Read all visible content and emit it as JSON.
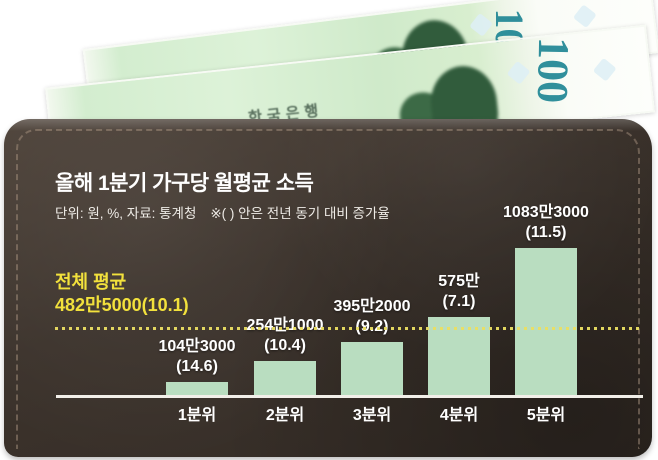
{
  "header": {
    "title": "올해 1분기 가구당 월평균 소득",
    "unit_label": "단위: 원, %, 자료: 통계청",
    "paren_note": "※( ) 안은 전년 동기 대비 증가율"
  },
  "average": {
    "label": "전체 평균",
    "value_label": "482만5000(10.1)"
  },
  "bars": [
    {
      "category": "1분위",
      "value_label": "104만3000",
      "growth_label": "(14.6)"
    },
    {
      "category": "2분위",
      "value_label": "254만1000",
      "growth_label": "(10.4)"
    },
    {
      "category": "3분위",
      "value_label": "395만2000",
      "growth_label": "(9.2)"
    },
    {
      "category": "4분위",
      "value_label": "575만",
      "growth_label": "(7.1)"
    },
    {
      "category": "5분위",
      "value_label": "1083만3000",
      "growth_label": "(11.5)"
    }
  ],
  "banknotes": {
    "bank_name": "한국은행",
    "back_note_number": "10",
    "front_note_number": "100"
  },
  "colors": {
    "bar_green": "#b9ddc0",
    "highlight_yellow": "#f2e13c",
    "wallet_brown": "#3a312b",
    "numeral_teal": "#1f8694",
    "text_white": "#ffffff"
  },
  "chart_data": {
    "type": "bar",
    "title": "올해 1분기 가구당 월평균 소득",
    "unit": "원, %",
    "source": "통계청",
    "note": "( ) 안은 전년 동기 대비 증가율",
    "categories": [
      "1분위",
      "2분위",
      "3분위",
      "4분위",
      "5분위"
    ],
    "series": [
      {
        "name": "월평균 소득(원)",
        "values": [
          1043000,
          2541000,
          3952000,
          5750000,
          10833000
        ]
      },
      {
        "name": "전년 동기 대비 증가율(%)",
        "values": [
          14.6,
          10.4,
          9.2,
          7.1,
          11.5
        ]
      }
    ],
    "reference_line": {
      "label": "전체 평균",
      "value": 4825000,
      "growth_pct": 10.1
    },
    "ylim": [
      0,
      11000000
    ],
    "grid": false,
    "legend": false
  }
}
